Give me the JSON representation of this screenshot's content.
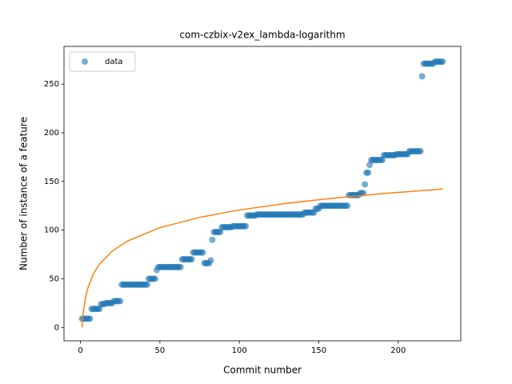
{
  "chart_data": {
    "type": "scatter",
    "title": "com-czbix-v2ex_lambda-logarithm",
    "xlabel": "Commit number",
    "ylabel": "Number of instance of a feature",
    "xlim": [
      -10.35,
      239.35
    ],
    "ylim": [
      -13.75,
      288.75
    ],
    "xticks": [
      0,
      50,
      100,
      150,
      200
    ],
    "yticks": [
      0,
      50,
      100,
      150,
      200,
      250
    ],
    "legend": "upper left",
    "series": [
      {
        "name": "data",
        "type": "scatter",
        "color": "#1f77b4",
        "x": [
          1,
          2,
          3,
          4,
          5,
          6,
          7,
          8,
          9,
          10,
          11,
          12,
          13,
          14,
          15,
          16,
          17,
          18,
          19,
          20,
          21,
          22,
          23,
          24,
          25,
          26,
          27,
          28,
          29,
          30,
          31,
          32,
          33,
          34,
          35,
          36,
          37,
          38,
          39,
          40,
          41,
          42,
          43,
          44,
          45,
          46,
          47,
          48,
          49,
          50,
          51,
          52,
          53,
          54,
          55,
          56,
          57,
          58,
          59,
          60,
          61,
          62,
          63,
          64,
          65,
          66,
          67,
          68,
          69,
          70,
          71,
          72,
          73,
          74,
          75,
          76,
          77,
          78,
          79,
          80,
          81,
          82,
          83,
          84,
          85,
          86,
          87,
          88,
          89,
          90,
          91,
          92,
          93,
          94,
          95,
          96,
          97,
          98,
          99,
          100,
          101,
          102,
          103,
          104,
          105,
          106,
          107,
          108,
          109,
          110,
          111,
          112,
          113,
          114,
          115,
          116,
          117,
          118,
          119,
          120,
          121,
          122,
          123,
          124,
          125,
          126,
          127,
          128,
          129,
          130,
          131,
          132,
          133,
          134,
          135,
          136,
          137,
          138,
          139,
          140,
          141,
          142,
          143,
          144,
          145,
          146,
          147,
          148,
          149,
          150,
          151,
          152,
          153,
          154,
          155,
          156,
          157,
          158,
          159,
          160,
          161,
          162,
          163,
          164,
          165,
          166,
          167,
          168,
          169,
          170,
          171,
          172,
          173,
          174,
          175,
          176,
          177,
          178,
          179,
          180,
          181,
          182,
          183,
          184,
          185,
          186,
          187,
          188,
          189,
          190,
          191,
          192,
          193,
          194,
          195,
          196,
          197,
          198,
          199,
          200,
          201,
          202,
          203,
          204,
          205,
          206,
          207,
          208,
          209,
          210,
          211,
          212,
          213,
          214,
          215,
          216,
          217,
          218,
          219,
          220,
          221,
          222,
          223,
          224,
          225,
          226,
          227,
          228
        ],
        "values": [
          9,
          9,
          9,
          9,
          9,
          9,
          19,
          19,
          19,
          19,
          19,
          19,
          24,
          24,
          24,
          25,
          25,
          25,
          25,
          25,
          27,
          27,
          27,
          27,
          27,
          44,
          44,
          44,
          44,
          44,
          44,
          44,
          44,
          44,
          44,
          44,
          44,
          44,
          44,
          44,
          44,
          44,
          50,
          50,
          50,
          50,
          50,
          59,
          62,
          62,
          62,
          62,
          62,
          62,
          62,
          62,
          62,
          62,
          62,
          62,
          62,
          62,
          62,
          70,
          70,
          70,
          70,
          70,
          70,
          70,
          77,
          77,
          77,
          77,
          77,
          77,
          77,
          66,
          66,
          66,
          66,
          69,
          90,
          98,
          98,
          98,
          98,
          98,
          103,
          103,
          103,
          103,
          103,
          103,
          103,
          104,
          104,
          104,
          104,
          104,
          104,
          104,
          104,
          104,
          115,
          115,
          115,
          115,
          115,
          115,
          116,
          116,
          116,
          116,
          116,
          116,
          116,
          116,
          116,
          116,
          116,
          116,
          116,
          116,
          116,
          116,
          116,
          116,
          116,
          116,
          116,
          116,
          116,
          116,
          116,
          116,
          116,
          116,
          116,
          116,
          118,
          118,
          118,
          118,
          118,
          118,
          118,
          122,
          122,
          122,
          125,
          125,
          125,
          125,
          125,
          125,
          125,
          125,
          125,
          125,
          125,
          125,
          125,
          125,
          125,
          125,
          125,
          125,
          136,
          136,
          136,
          136,
          136,
          136,
          136,
          138,
          138,
          138,
          147,
          159,
          159,
          167,
          172,
          172,
          172,
          172,
          172,
          172,
          172,
          172,
          177,
          177,
          177,
          177,
          177,
          177,
          177,
          177,
          178,
          178,
          178,
          178,
          178,
          178,
          178,
          178,
          181,
          181,
          181,
          181,
          181,
          181,
          181,
          181,
          258,
          271,
          271,
          271,
          271,
          271,
          271,
          271,
          273,
          273,
          273,
          273,
          273,
          273
        ]
      },
      {
        "type": "line",
        "color": "#ff7f0e",
        "x": [
          1,
          1.5,
          2,
          3,
          4,
          5,
          8,
          12,
          20,
          30,
          50,
          75,
          100,
          130,
          160,
          190,
          228
        ],
        "values": [
          0,
          10.6,
          18.2,
          28.8,
          36.3,
          42.2,
          54.5,
          65.1,
          78.5,
          89.1,
          102.5,
          113.1,
          120.7,
          127.5,
          133.0,
          137.5,
          142.2
        ]
      }
    ]
  }
}
